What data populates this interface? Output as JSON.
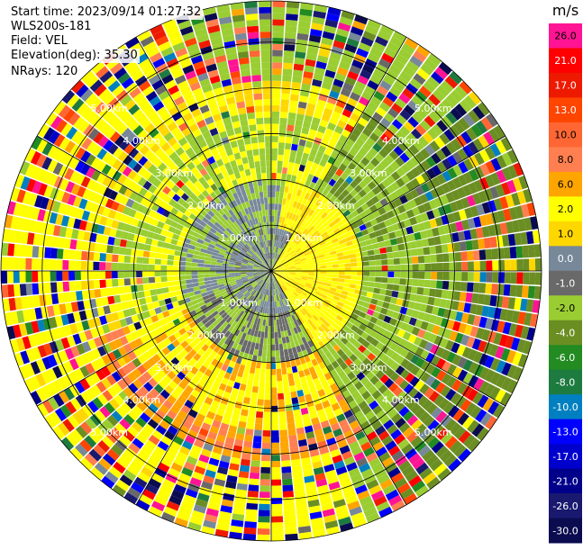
{
  "header": {
    "start_time": "Start time: 2023/09/14 01:27:32",
    "instrument": "WLS200s-181",
    "field": "Field: VEL",
    "elevation": "Elevation(deg): 35.30",
    "nrays": "NRays: 120"
  },
  "colorbar": {
    "unit": "m/s",
    "levels": [
      {
        "label": "26.0",
        "color": "#ff1493"
      },
      {
        "label": "21.0",
        "color": "#ff0000"
      },
      {
        "label": "17.0",
        "color": "#ee1a00"
      },
      {
        "label": "13.0",
        "color": "#ff4500"
      },
      {
        "label": "10.0",
        "color": "#ff6633"
      },
      {
        "label": "8.0",
        "color": "#ff7f50"
      },
      {
        "label": "6.0",
        "color": "#ffa500"
      },
      {
        "label": "2.0",
        "color": "#ffff00"
      },
      {
        "label": "1.0",
        "color": "#ffd700"
      },
      {
        "label": "0.0",
        "color": "#778899"
      },
      {
        "label": "-1.0",
        "color": "#696969"
      },
      {
        "label": "-2.0",
        "color": "#9acd32"
      },
      {
        "label": "-4.0",
        "color": "#6b8e23"
      },
      {
        "label": "-6.0",
        "color": "#228b22"
      },
      {
        "label": "-8.0",
        "color": "#1e7b3f"
      },
      {
        "label": "-10.0",
        "color": "#0080c0"
      },
      {
        "label": "-13.0",
        "color": "#0000ff"
      },
      {
        "label": "-17.0",
        "color": "#0000cd"
      },
      {
        "label": "-21.0",
        "color": "#00008b"
      },
      {
        "label": "-26.0",
        "color": "#191970"
      },
      {
        "label": "-30.0",
        "color": "#0b0b50"
      }
    ]
  },
  "chart_data": {
    "type": "heatmap",
    "subtype": "polar PPI scan",
    "field": "VEL",
    "units": "m/s",
    "nrays": 120,
    "range_rings_km": [
      1.0,
      2.0,
      3.0,
      4.0,
      5.0
    ],
    "ring_labels": [
      "1.00km",
      "2.00km",
      "3.00km",
      "4.00km",
      "5.00km"
    ],
    "max_range_km": 5.9,
    "spoke_angles_deg": [
      0,
      30,
      60,
      90,
      120,
      150,
      180,
      210,
      240,
      270,
      300,
      330
    ],
    "description_by_range": [
      {
        "range_km": [
          0.0,
          1.0
        ],
        "dominant": "mixed gray / yellow-green near zero (-2..2 m/s)"
      },
      {
        "range_km": [
          1.0,
          2.0
        ],
        "dominant": "yellow (+2 m/s) east sector, gray/green west"
      },
      {
        "range_km": [
          2.0,
          3.5
        ],
        "dominant": "yellow-green (-2..2 m/s) with some orange in SW"
      },
      {
        "range_km": [
          3.5,
          5.9
        ],
        "dominant": "noisy mix of all velocity bins (speckle)"
      }
    ]
  }
}
